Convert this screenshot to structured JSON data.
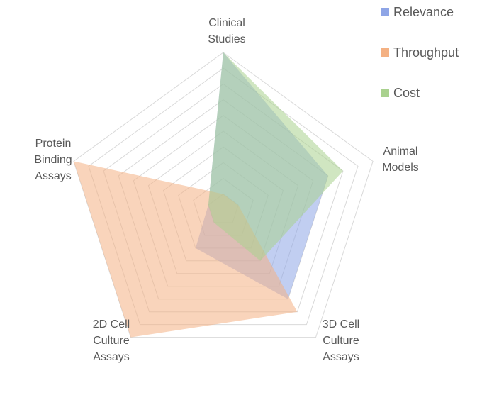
{
  "chart_data": {
    "type": "radar",
    "title": "",
    "axes": [
      [
        "Clinical",
        "Studies"
      ],
      [
        "Animal",
        "Models"
      ],
      [
        "3D Cell",
        "Culture",
        "Assays"
      ],
      [
        "2D Cell",
        "Culture",
        "Assays"
      ],
      [
        "Protein",
        "Binding",
        "Assays"
      ]
    ],
    "rlim": [
      0,
      10
    ],
    "grid_levels": 10,
    "series": [
      {
        "name": "Relevance",
        "values": [
          10,
          7,
          7,
          3,
          1
        ],
        "color": "#8ea5e6"
      },
      {
        "name": "Throughput",
        "values": [
          1,
          1,
          8,
          10,
          10
        ],
        "color": "#f4b183"
      },
      {
        "name": "Cost",
        "values": [
          10,
          8,
          4,
          1,
          1
        ],
        "color": "#a9d18e"
      }
    ],
    "legend_position": "top-right",
    "grid": true
  }
}
